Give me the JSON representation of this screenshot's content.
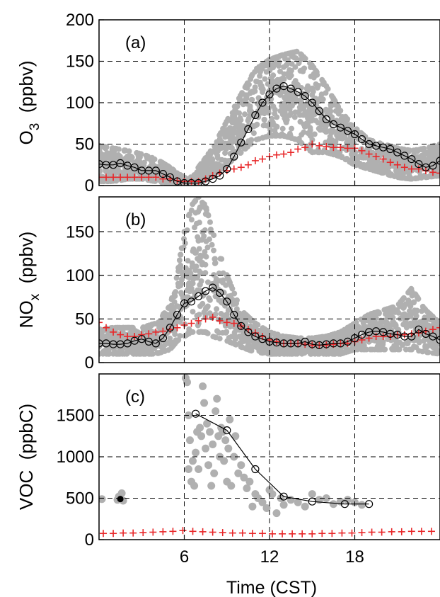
{
  "figure": {
    "xlabel": "Time (CST)"
  },
  "colors": {
    "obs_points": "#b0b0b0",
    "mean_line": "#000000",
    "model_marker": "#e8282a",
    "grid": "#000000"
  },
  "chart_data": [
    {
      "type": "scatter",
      "panel_label": "(a)",
      "ylabel_main": "O",
      "ylabel_sub": "3",
      "ylabel_unit": "(ppbv)",
      "xlim": [
        0,
        24
      ],
      "ylim": [
        0,
        200
      ],
      "yticks": [
        "0",
        "50",
        "100",
        "150",
        "200"
      ],
      "grid": true,
      "observed_band": {
        "name": "observations",
        "x": [
          0,
          1,
          2,
          3,
          4,
          5,
          5.5,
          6,
          6.5,
          7,
          8,
          9,
          10,
          11,
          12,
          13,
          14,
          15,
          16,
          17,
          18,
          19,
          20,
          21,
          22,
          23,
          24
        ],
        "low": [
          5,
          5,
          8,
          8,
          5,
          2,
          0,
          0,
          0,
          2,
          12,
          25,
          40,
          55,
          60,
          60,
          55,
          40,
          40,
          35,
          25,
          20,
          15,
          10,
          8,
          10,
          12
        ],
        "high": [
          48,
          45,
          42,
          38,
          32,
          22,
          15,
          10,
          10,
          22,
          45,
          78,
          110,
          140,
          152,
          158,
          162,
          145,
          120,
          90,
          70,
          55,
          50,
          45,
          42,
          45,
          50
        ]
      },
      "mean_series": {
        "name": "mean",
        "x": [
          0,
          0.5,
          1,
          1.5,
          2,
          2.5,
          3,
          3.5,
          4,
          4.5,
          5,
          5.5,
          6,
          6.5,
          7,
          7.5,
          8,
          8.5,
          9,
          9.5,
          10,
          10.5,
          11,
          11.5,
          12,
          12.5,
          13,
          13.5,
          14,
          14.5,
          15,
          15.5,
          16,
          16.5,
          17,
          17.5,
          18,
          18.5,
          19,
          19.5,
          20,
          20.5,
          21,
          21.5,
          22,
          22.5,
          23,
          23.5,
          24
        ],
        "y": [
          26,
          25,
          25,
          27,
          24,
          22,
          18,
          18,
          18,
          14,
          10,
          5,
          3,
          3,
          3,
          5,
          8,
          12,
          20,
          35,
          52,
          68,
          85,
          100,
          110,
          117,
          120,
          117,
          113,
          108,
          100,
          90,
          80,
          74,
          70,
          66,
          62,
          56,
          50,
          48,
          46,
          44,
          40,
          36,
          32,
          26,
          22,
          24,
          30
        ]
      },
      "model_series": {
        "name": "model",
        "x": [
          0,
          0.5,
          1,
          1.5,
          2,
          2.5,
          3,
          3.5,
          4,
          4.5,
          5,
          5.5,
          6,
          6.5,
          7,
          7.5,
          8,
          8.5,
          9,
          9.5,
          10,
          10.5,
          11,
          11.5,
          12,
          12.5,
          13,
          13.5,
          14,
          14.5,
          15,
          15.5,
          16,
          16.5,
          17,
          17.5,
          18,
          18.5,
          19,
          19.5,
          20,
          20.5,
          21,
          21.5,
          22,
          22.5,
          23,
          23.5,
          24
        ],
        "y": [
          10,
          10,
          10,
          10,
          10,
          10,
          10,
          10,
          10,
          8,
          8,
          6,
          5,
          5,
          5,
          8,
          12,
          15,
          18,
          20,
          22,
          25,
          30,
          32,
          35,
          37,
          38,
          40,
          44,
          46,
          50,
          48,
          47,
          46,
          46,
          45,
          45,
          42,
          38,
          35,
          32,
          28,
          25,
          22,
          20,
          20,
          18,
          16,
          15
        ]
      }
    },
    {
      "type": "scatter",
      "panel_label": "(b)",
      "ylabel_main": "NO",
      "ylabel_sub": "x",
      "ylabel_unit": "(ppbv)",
      "xlim": [
        0,
        24
      ],
      "ylim": [
        0,
        190
      ],
      "yticks": [
        "0",
        "50",
        "100",
        "150"
      ],
      "grid": true,
      "observed_band": {
        "name": "observations",
        "x": [
          0,
          1,
          2,
          3,
          4,
          5,
          5.5,
          6,
          6.5,
          7,
          7.5,
          8,
          9,
          10,
          11,
          12,
          13,
          14,
          15,
          16,
          17,
          18,
          19,
          20,
          21,
          22,
          23,
          24
        ],
        "low": [
          10,
          10,
          10,
          10,
          10,
          15,
          25,
          30,
          35,
          35,
          35,
          30,
          25,
          18,
          12,
          10,
          10,
          10,
          10,
          10,
          10,
          15,
          15,
          15,
          15,
          15,
          12,
          10
        ],
        "high": [
          38,
          40,
          40,
          40,
          45,
          65,
          100,
          150,
          180,
          190,
          180,
          150,
          100,
          60,
          45,
          35,
          30,
          28,
          28,
          30,
          35,
          45,
          55,
          60,
          65,
          85,
          60,
          45
        ]
      },
      "mean_series": {
        "name": "mean",
        "x": [
          0,
          0.5,
          1,
          1.5,
          2,
          2.5,
          3,
          3.5,
          4,
          4.5,
          5,
          5.5,
          6,
          6.5,
          7,
          7.5,
          8,
          8.5,
          9,
          9.5,
          10,
          10.5,
          11,
          11.5,
          12,
          12.5,
          13,
          13.5,
          14,
          14.5,
          15,
          15.5,
          16,
          16.5,
          17,
          17.5,
          18,
          18.5,
          19,
          19.5,
          20,
          20.5,
          21,
          21.5,
          22,
          22.5,
          23,
          23.5,
          24
        ],
        "y": [
          22,
          22,
          21,
          21,
          22,
          25,
          27,
          24,
          22,
          28,
          40,
          55,
          68,
          70,
          76,
          82,
          86,
          80,
          70,
          55,
          42,
          35,
          30,
          27,
          24,
          23,
          22,
          22,
          22,
          24,
          21,
          20,
          21,
          22,
          22,
          24,
          28,
          32,
          35,
          36,
          35,
          33,
          32,
          30,
          30,
          38,
          33,
          30,
          26
        ]
      },
      "model_series": {
        "name": "model",
        "x": [
          0,
          0.5,
          1,
          1.5,
          2,
          2.5,
          3,
          3.5,
          4,
          4.5,
          5,
          5.5,
          6,
          6.5,
          7,
          7.5,
          8,
          8.5,
          9,
          9.5,
          10,
          10.5,
          11,
          11.5,
          12,
          12.5,
          13,
          13.5,
          14,
          14.5,
          15,
          15.5,
          16,
          16.5,
          17,
          17.5,
          18,
          18.5,
          19,
          19.5,
          20,
          20.5,
          21,
          21.5,
          22,
          22.5,
          23,
          23.5,
          24
        ],
        "y": [
          46,
          40,
          35,
          32,
          30,
          30,
          32,
          33,
          35,
          36,
          38,
          40,
          43,
          45,
          48,
          50,
          52,
          48,
          46,
          45,
          42,
          38,
          34,
          30,
          26,
          24,
          22,
          22,
          22,
          21,
          20,
          20,
          20,
          21,
          22,
          22,
          24,
          26,
          28,
          30,
          30,
          30,
          32,
          32,
          33,
          34,
          36,
          38,
          40
        ]
      }
    },
    {
      "type": "scatter",
      "panel_label": "(c)",
      "ylabel_main": "VOC",
      "ylabel_sub": "",
      "ylabel_unit": "(ppbC)",
      "xlim": [
        0,
        24
      ],
      "ylim": [
        0,
        2000
      ],
      "yticks": [
        "0",
        "500",
        "1000",
        "1500"
      ],
      "grid": true,
      "observed_points": {
        "name": "observations",
        "x": [
          0.2,
          1.3,
          1.4,
          1.6,
          1.7,
          6.1,
          6.2,
          6.3,
          6.3,
          6.4,
          6.5,
          6.6,
          6.7,
          6.8,
          6.9,
          7.0,
          7.1,
          7.2,
          7.3,
          7.4,
          7.5,
          7.6,
          7.7,
          7.8,
          7.9,
          8.0,
          8.1,
          8.2,
          8.3,
          8.4,
          8.5,
          8.6,
          8.7,
          8.8,
          8.9,
          9.0,
          9.1,
          9.2,
          9.3,
          9.5,
          9.6,
          9.8,
          10.0,
          10.2,
          10.4,
          10.6,
          10.8,
          11.0,
          11.2,
          11.5,
          11.8,
          12.0,
          12.2,
          12.5,
          12.8,
          13.0,
          13.5,
          14.0,
          14.5,
          15.0,
          15.5,
          16.0,
          16.5,
          17.0,
          17.5,
          18.0,
          18.5
        ],
        "y": [
          490,
          480,
          520,
          560,
          470,
          1950,
          1900,
          1500,
          850,
          1200,
          700,
          950,
          650,
          1050,
          1300,
          850,
          1350,
          1250,
          1850,
          1650,
          1100,
          1400,
          900,
          1300,
          650,
          1150,
          800,
          1550,
          1700,
          1250,
          1000,
          1350,
          1300,
          950,
          1200,
          700,
          1100,
          1450,
          650,
          1000,
          1250,
          800,
          900,
          750,
          620,
          700,
          400,
          550,
          500,
          450,
          380,
          600,
          550,
          320,
          500,
          420,
          480,
          450,
          400,
          550,
          480,
          500,
          430,
          460,
          480,
          450,
          420
        ]
      },
      "mean_series": {
        "name": "mean",
        "x": [
          6.8,
          9.0,
          11.0,
          13.0,
          15.0,
          17.3,
          19.0
        ],
        "y": [
          1520,
          1320,
          850,
          520,
          460,
          430,
          430
        ]
      },
      "extra_mean_marker": {
        "x": 1.5,
        "y": 490
      },
      "model_series": {
        "name": "model",
        "x": [
          0.3,
          1.0,
          1.7,
          2.4,
          3.1,
          3.8,
          4.5,
          5.2,
          5.9,
          6.6,
          7.3,
          8.0,
          8.7,
          9.4,
          10.1,
          10.8,
          11.5,
          12.2,
          12.9,
          13.6,
          14.3,
          15.0,
          15.7,
          16.4,
          17.1,
          17.8,
          18.5,
          19.2,
          19.9,
          20.6,
          21.3,
          22.0,
          22.7,
          23.4
        ],
        "y": [
          75,
          75,
          80,
          80,
          85,
          90,
          95,
          100,
          110,
          100,
          95,
          90,
          85,
          80,
          80,
          75,
          75,
          70,
          70,
          70,
          70,
          70,
          75,
          75,
          80,
          80,
          85,
          90,
          90,
          95,
          95,
          100,
          100,
          100
        ]
      }
    }
  ]
}
